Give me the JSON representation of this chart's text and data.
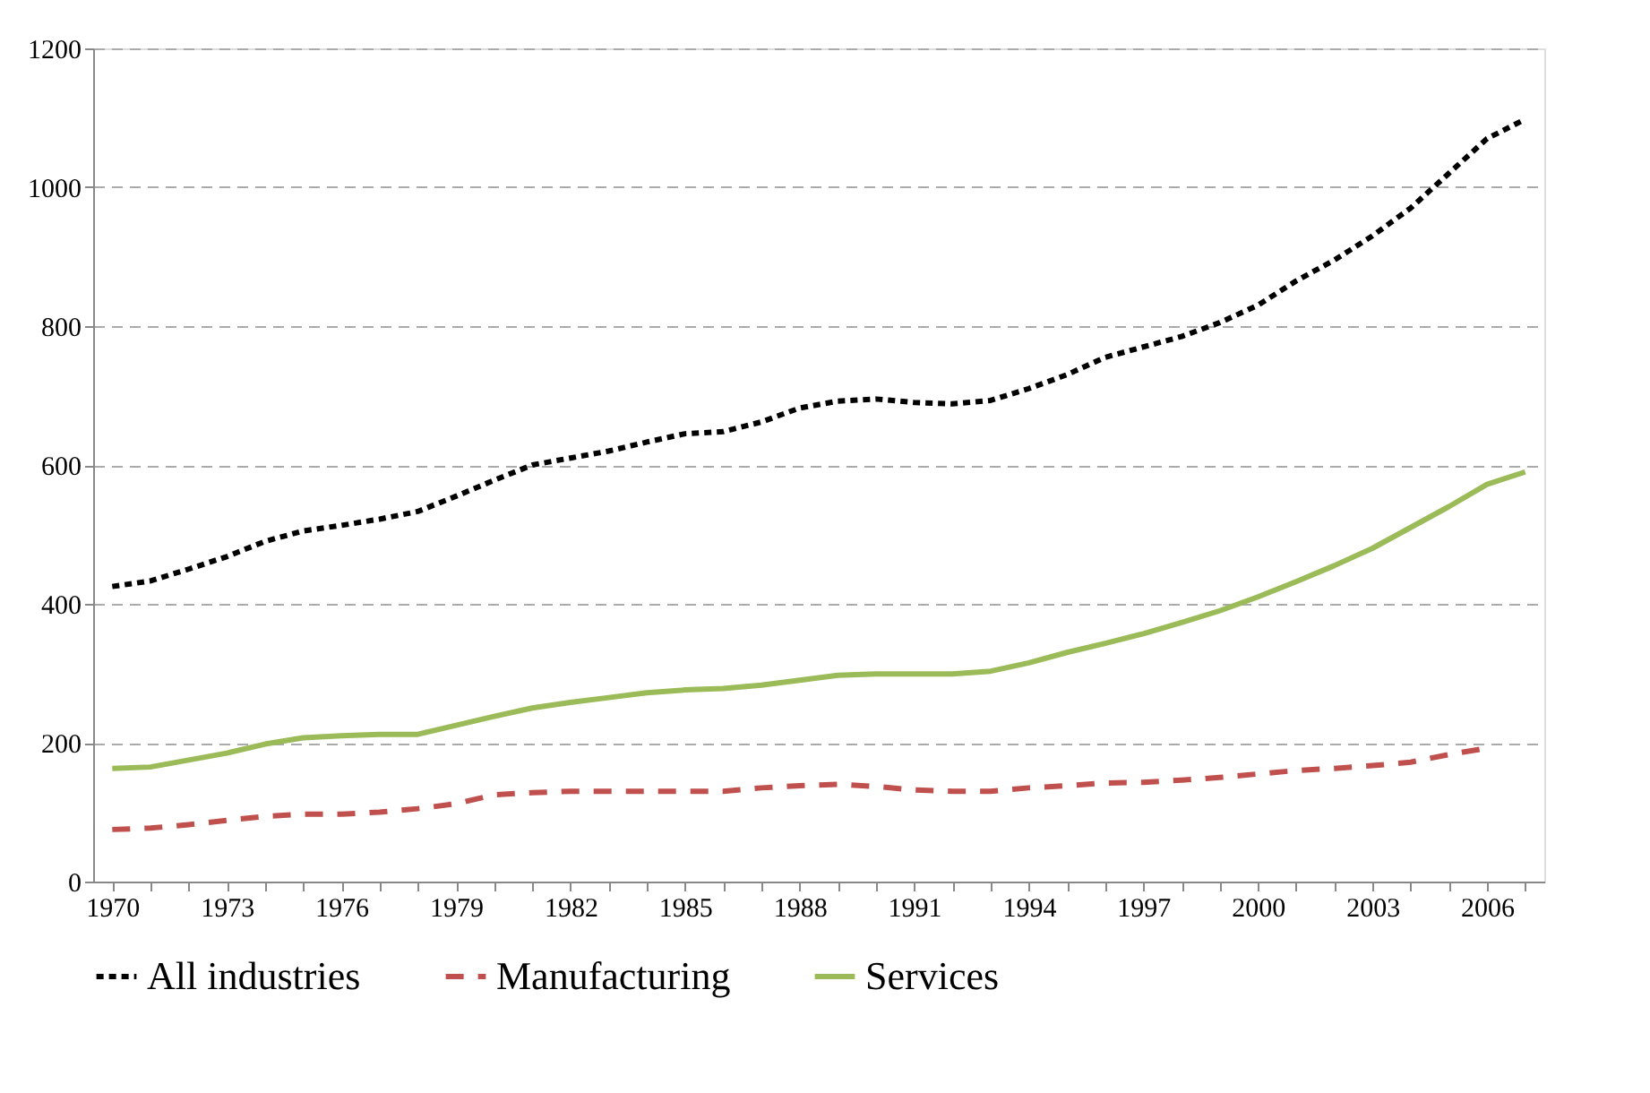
{
  "chart_data": {
    "type": "line",
    "categories": [
      "1970",
      null,
      null,
      "1973",
      null,
      null,
      "1976",
      null,
      null,
      "1979",
      null,
      null,
      "1982",
      null,
      null,
      "1985",
      null,
      null,
      "1988",
      null,
      null,
      "1991",
      null,
      null,
      "1994",
      null,
      null,
      "1997",
      null,
      null,
      "2000",
      null,
      null,
      "2003",
      null,
      null,
      "2006",
      null
    ],
    "series": [
      {
        "name": "All industries",
        "color": "#000000",
        "line_style": "dotted",
        "values": [
          425,
          433,
          450,
          468,
          490,
          505,
          513,
          522,
          533,
          555,
          578,
          600,
          610,
          620,
          633,
          645,
          648,
          662,
          682,
          692,
          695,
          690,
          688,
          693,
          710,
          730,
          755,
          770,
          785,
          805,
          830,
          865,
          895,
          930,
          970,
          1020,
          1070,
          1098
        ]
      },
      {
        "name": "Manufacturing",
        "color": "#c0504d",
        "line_style": "dashed",
        "values": [
          75,
          77,
          82,
          88,
          94,
          97,
          97,
          100,
          105,
          112,
          125,
          128,
          130,
          130,
          130,
          130,
          130,
          135,
          138,
          140,
          137,
          132,
          130,
          130,
          135,
          138,
          142,
          143,
          146,
          150,
          155,
          160,
          163,
          167,
          172,
          183,
          192,
          null
        ]
      },
      {
        "name": "Services",
        "color": "#9bbb59",
        "line_style": "solid",
        "values": [
          163,
          165,
          175,
          185,
          198,
          207,
          210,
          212,
          212,
          225,
          238,
          250,
          258,
          265,
          272,
          276,
          278,
          283,
          290,
          297,
          299,
          299,
          299,
          303,
          315,
          330,
          343,
          357,
          373,
          390,
          410,
          432,
          455,
          480,
          510,
          540,
          572,
          590
        ]
      }
    ],
    "ylim": [
      0,
      1200
    ],
    "yticks": [
      0,
      200,
      400,
      600,
      800,
      1000,
      1200
    ],
    "grid": "y",
    "legend": "bottom",
    "marker": "none"
  }
}
